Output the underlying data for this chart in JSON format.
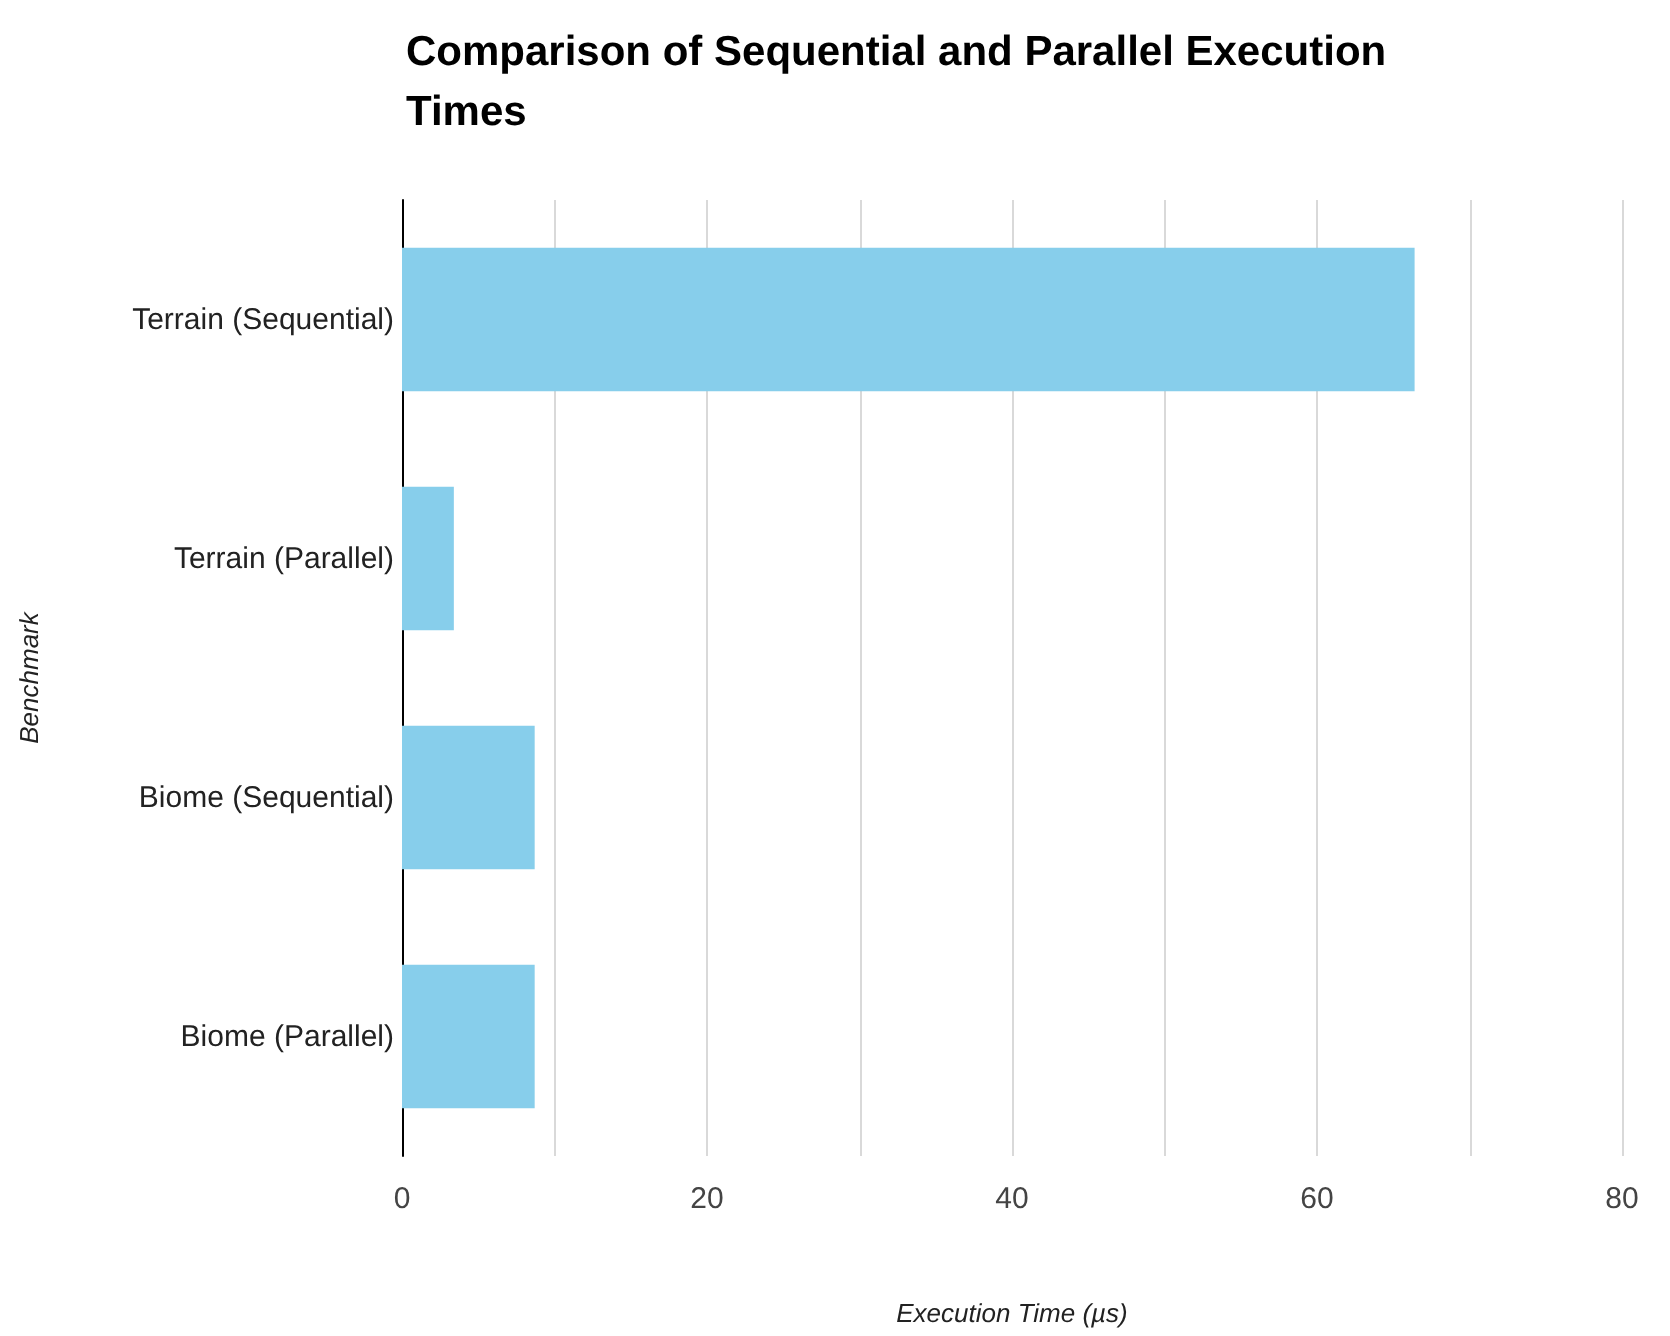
{
  "chart_data": {
    "type": "bar",
    "orientation": "horizontal",
    "title": "Comparison of Sequential and Parallel Execution Times",
    "xlabel": "Execution Time (µs)",
    "ylabel": "Benchmark",
    "categories": [
      "Terrain (Sequential)",
      "Terrain (Parallel)",
      "Biome (Sequential)",
      "Biome (Parallel)"
    ],
    "values": [
      66.4,
      3.4,
      8.7,
      8.7
    ],
    "color": "#87ceeb",
    "xlim": [
      0,
      80
    ],
    "xticks": [
      0,
      {
        "value": 10,
        "label": null
      },
      20,
      {
        "value": 30,
        "label": null
      },
      40,
      {
        "value": 50,
        "label": null
      },
      60,
      {
        "value": 70,
        "label": null
      },
      80
    ],
    "grid": "x"
  }
}
